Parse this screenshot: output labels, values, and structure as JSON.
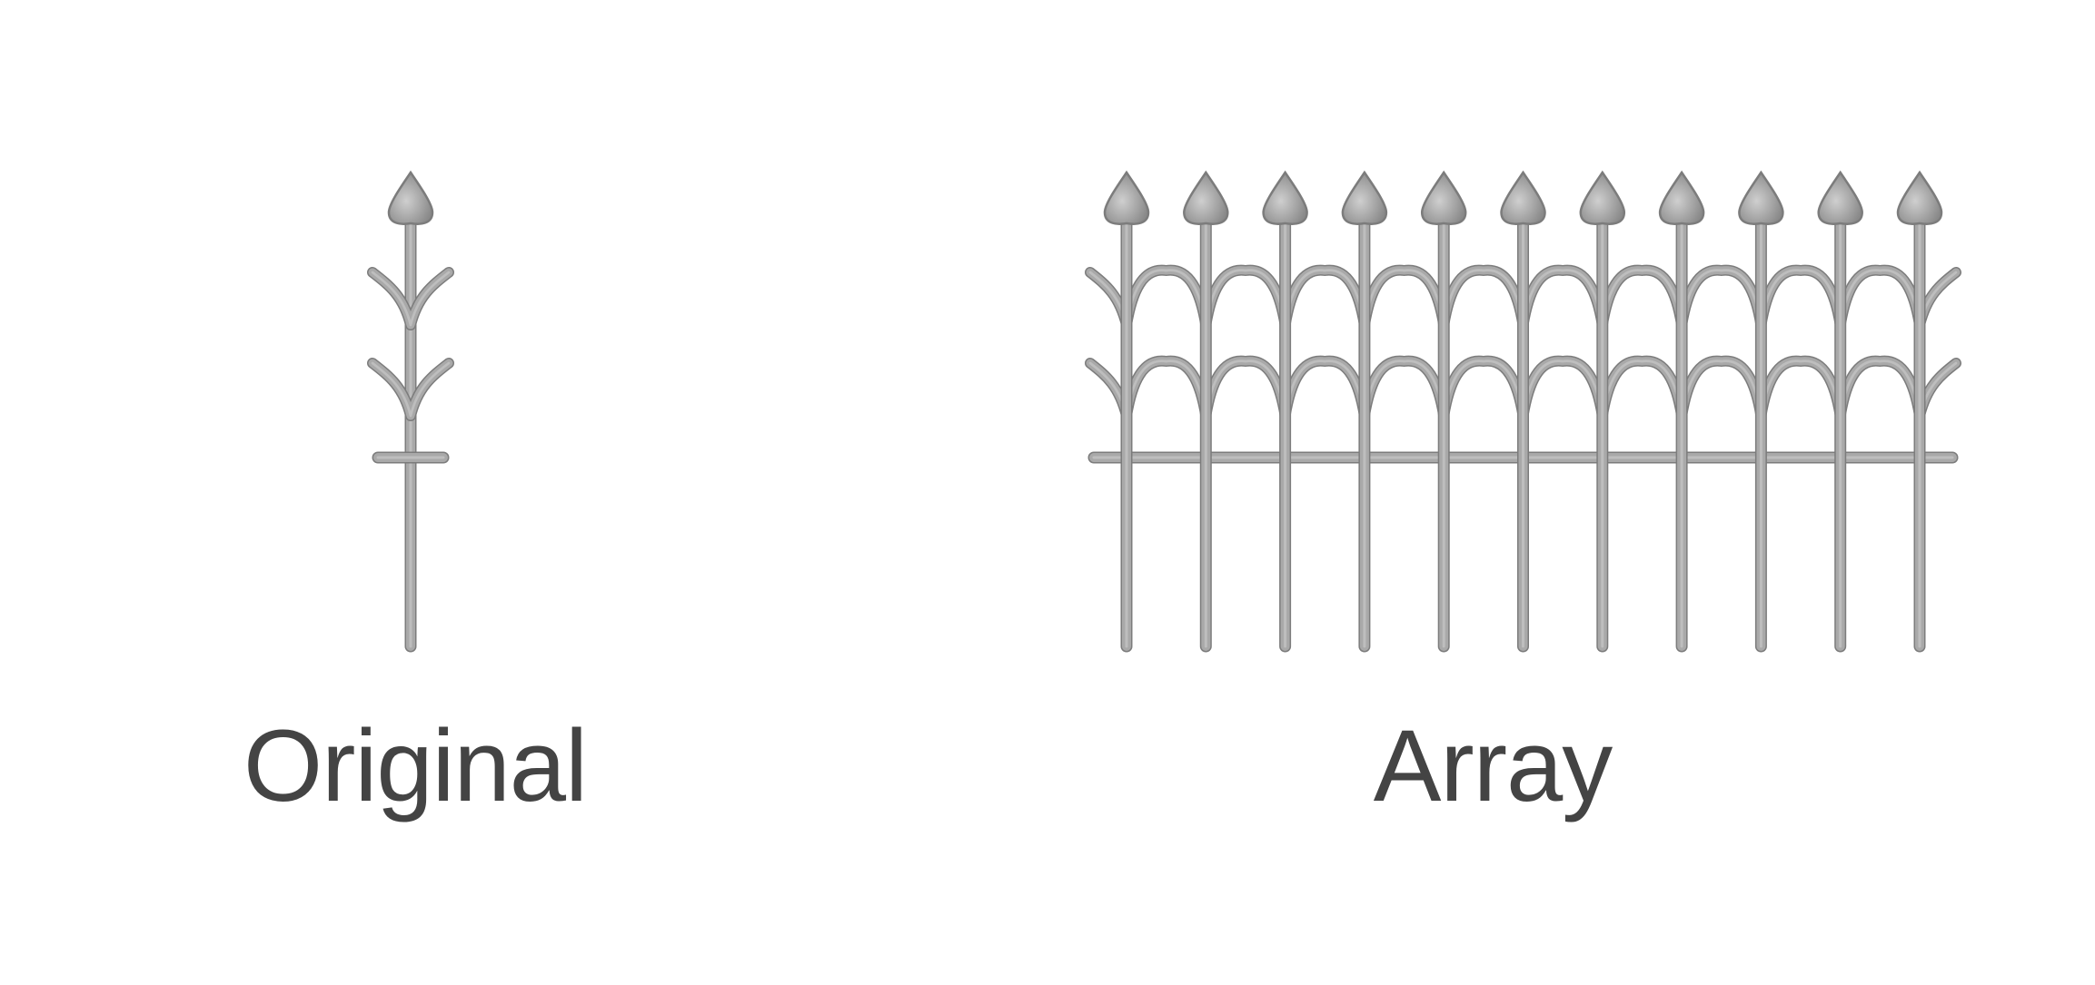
{
  "labels": {
    "original": "Original",
    "array": "Array"
  },
  "array": {
    "count": 11
  },
  "colors": {
    "metal_fill": "#a9a9a9",
    "metal_edge": "#7c7c7c",
    "text": "#444444",
    "background": "#ffffff"
  }
}
